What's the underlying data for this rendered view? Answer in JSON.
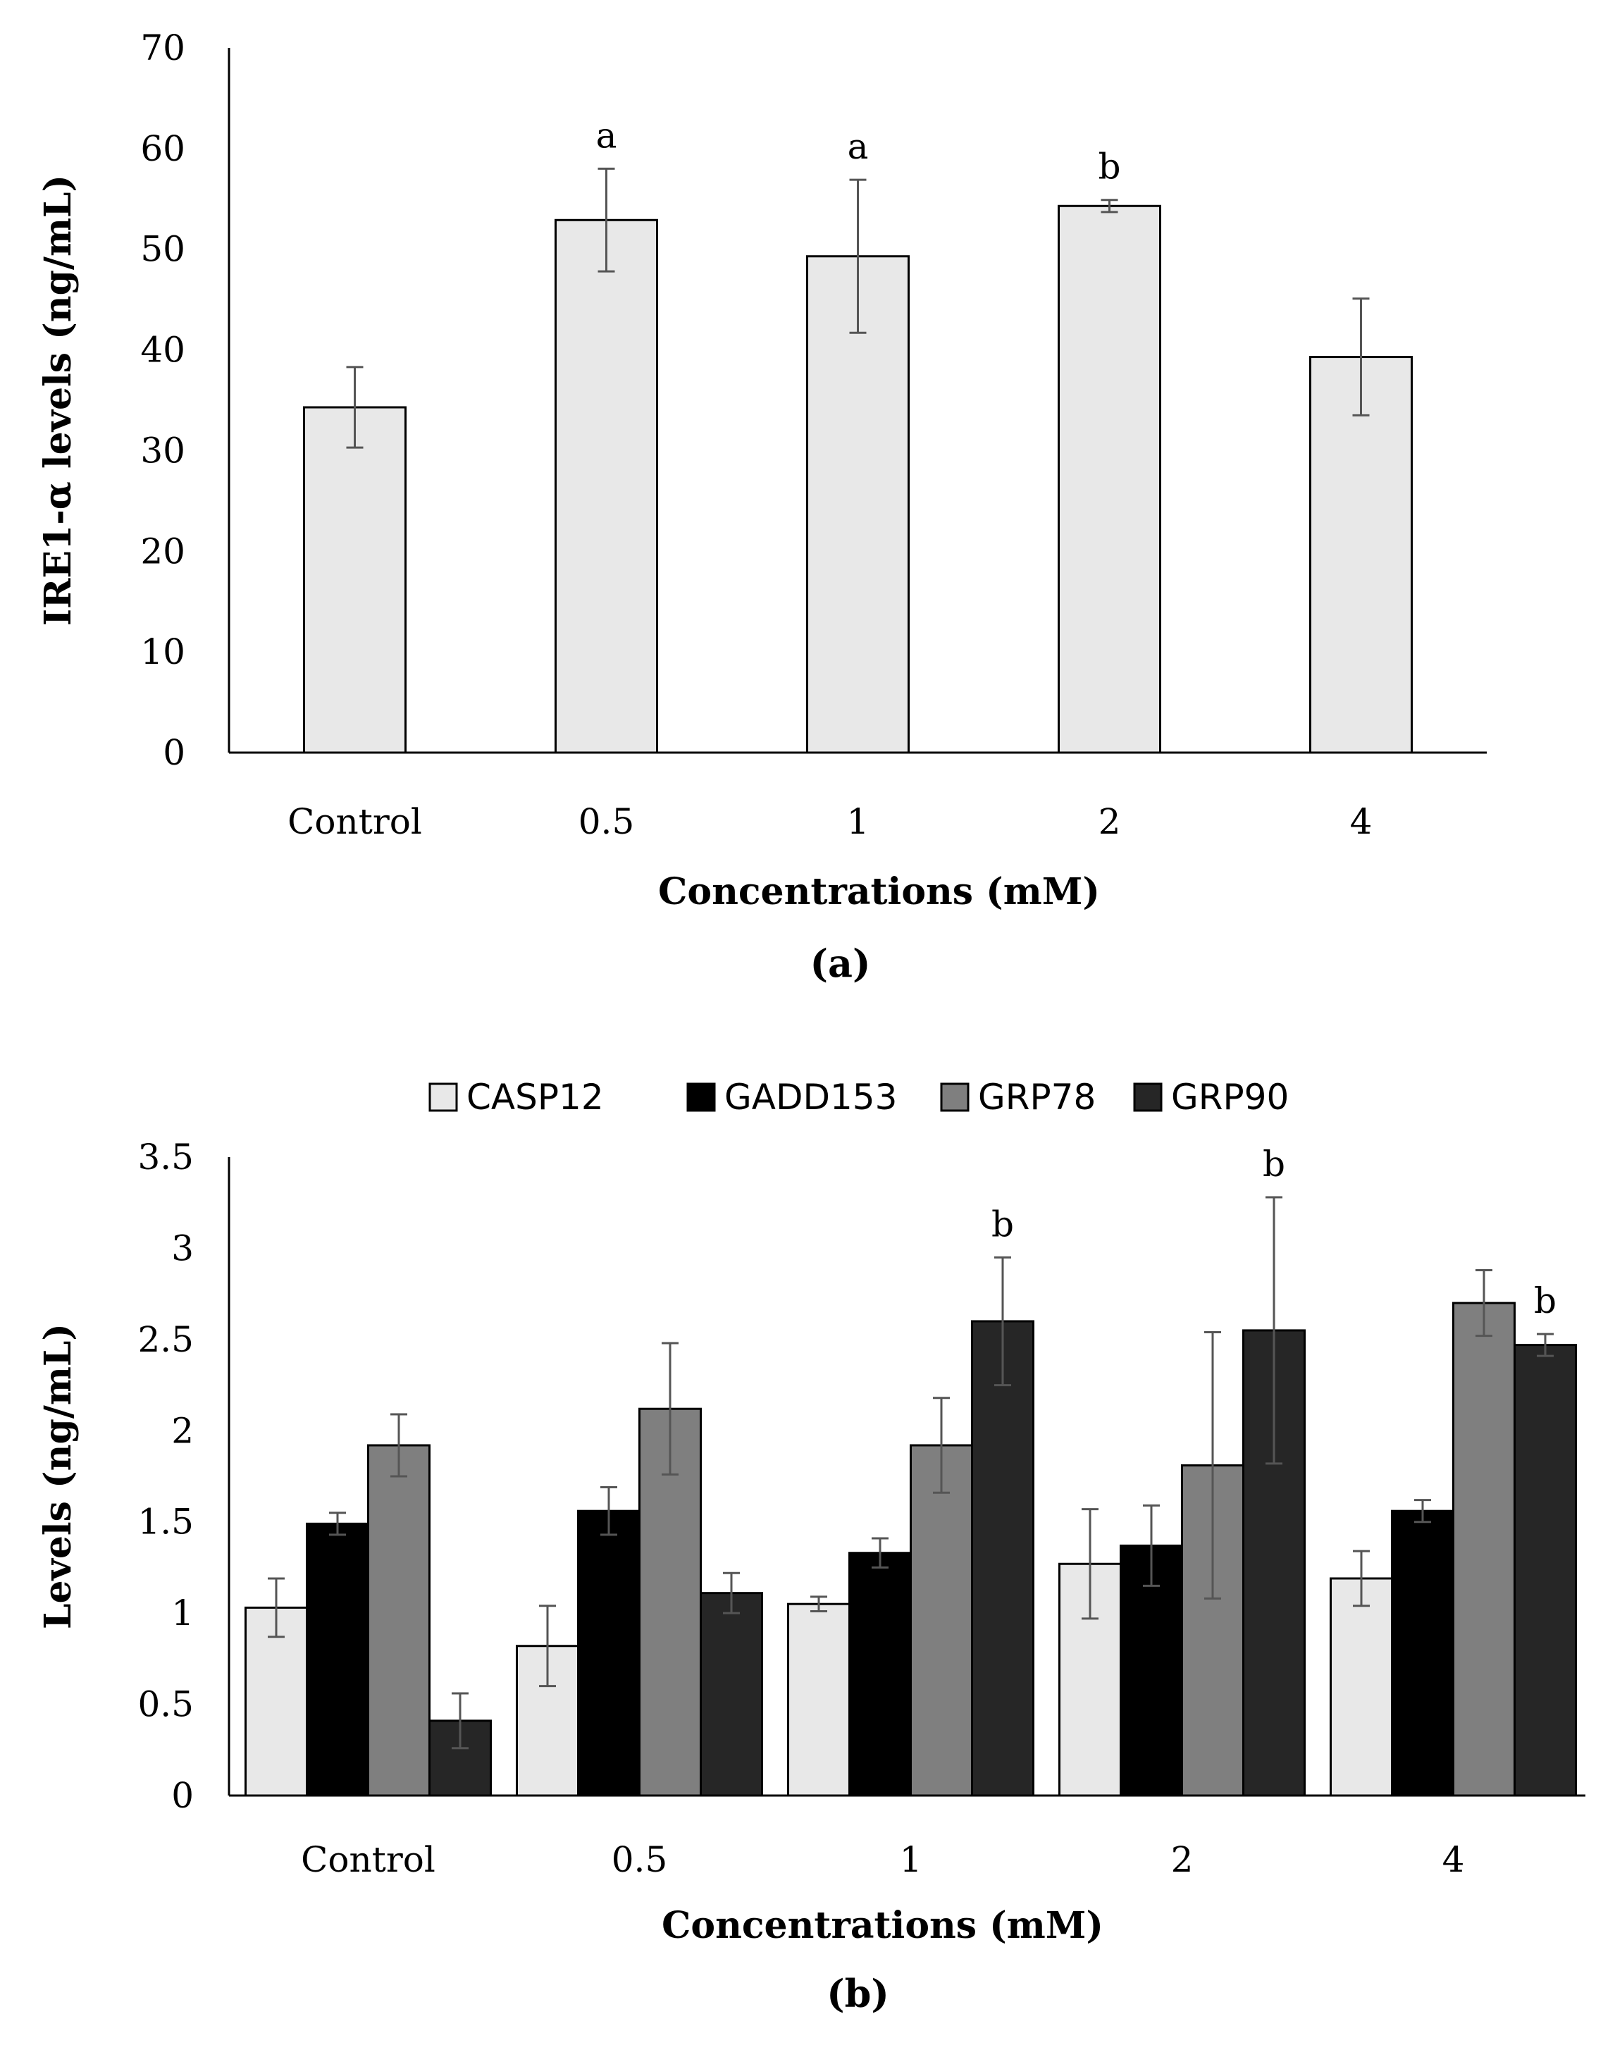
{
  "chart_data": [
    {
      "type": "bar",
      "title": "",
      "panel_label": "(a)",
      "xlabel": "Concentrations (mM)",
      "ylabel": "IRE1-α levels (ng/mL)",
      "categories": [
        "Control",
        "0.5",
        "1",
        "2",
        "4"
      ],
      "values": [
        34.3,
        52.9,
        49.3,
        54.3,
        39.3
      ],
      "errors": [
        4.0,
        5.1,
        7.6,
        0.6,
        5.8
      ],
      "annotations": [
        "",
        "a",
        "a",
        "b",
        ""
      ],
      "ylim": [
        0,
        70
      ],
      "yticks": [
        "0",
        "10",
        "20",
        "30",
        "40",
        "50",
        "60",
        "70"
      ],
      "bar_color": "#e8e8e8",
      "legend": "none"
    },
    {
      "type": "bar",
      "title": "",
      "panel_label": "(b)",
      "xlabel": "Concentrations (mM)",
      "ylabel": "Levels (ng/mL)",
      "categories": [
        "Control",
        "0.5",
        "1",
        "2",
        "4"
      ],
      "ylim": [
        0,
        3.5
      ],
      "yticks": [
        "0",
        "0.5",
        "1",
        "1.5",
        "2",
        "2.5",
        "3",
        "3.5"
      ],
      "legend": "top-center",
      "series": [
        {
          "name": "CASP12",
          "color": "#e8e8e8",
          "values": [
            1.03,
            0.82,
            1.05,
            1.27,
            1.19
          ],
          "errors": [
            0.16,
            0.22,
            0.04,
            0.3,
            0.15
          ],
          "annotations": [
            "",
            "",
            "",
            "",
            ""
          ]
        },
        {
          "name": "GADD153",
          "color": "#000000",
          "values": [
            1.49,
            1.56,
            1.33,
            1.37,
            1.56
          ],
          "errors": [
            0.06,
            0.13,
            0.08,
            0.22,
            0.06
          ],
          "annotations": [
            "",
            "",
            "",
            "",
            ""
          ]
        },
        {
          "name": "GRP78",
          "color": "#7f7f7f",
          "values": [
            1.92,
            2.12,
            1.92,
            1.81,
            2.7
          ],
          "errors": [
            0.17,
            0.36,
            0.26,
            0.73,
            0.18
          ],
          "annotations": [
            "",
            "",
            "",
            "",
            ""
          ]
        },
        {
          "name": "GRP90",
          "color": "#262626",
          "values": [
            0.41,
            1.11,
            2.6,
            2.55,
            2.47
          ],
          "errors": [
            0.15,
            0.11,
            0.35,
            0.73,
            0.06
          ],
          "annotations": [
            "",
            "",
            "b",
            "b",
            "b"
          ]
        }
      ]
    }
  ]
}
